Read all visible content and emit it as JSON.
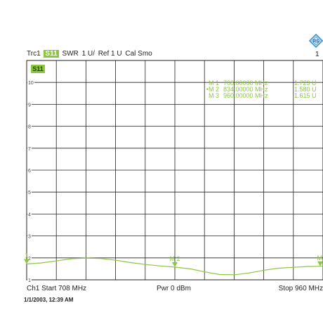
{
  "trace": {
    "name": "Trc1",
    "param": "S11",
    "format": "SWR",
    "scale": "1 U/",
    "ref": "Ref 1 U",
    "cal": "Cal Smo"
  },
  "channel_number": "1",
  "footer": {
    "start": "Ch1   Start  708 MHz",
    "pwr": "Pwr  0 dBm",
    "stop": "Stop  960 MHz"
  },
  "datetime": "1/1/2003, 12:39 AM",
  "colors": {
    "trace": "#8cc63f",
    "grid": "#222222"
  },
  "icons": {
    "logo": "rohde-schwarz-logo-icon"
  },
  "chart_data": {
    "type": "line",
    "badge": "S11",
    "xlim": [
      708,
      960
    ],
    "ylim": [
      1,
      11
    ],
    "y_ticks": [
      {
        "value": 10,
        "label": "10"
      },
      {
        "value": 9,
        "label": "9"
      },
      {
        "value": 8,
        "label": "8"
      },
      {
        "value": 7,
        "label": "7"
      },
      {
        "value": 6,
        "label": "6"
      },
      {
        "value": 5,
        "label": "5"
      },
      {
        "value": 4,
        "label": "4"
      },
      {
        "value": 3,
        "label": "3"
      },
      {
        "value": 2,
        "label": "2"
      },
      {
        "value": 1,
        "label": "1"
      }
    ],
    "series": [
      {
        "x": [
          708,
          720,
          733,
          746,
          758,
          771,
          784,
          796,
          809,
          822,
          834,
          847,
          860,
          872,
          885,
          897,
          910,
          922,
          935,
          947,
          960
        ],
        "y": [
          1.72,
          1.77,
          1.86,
          1.96,
          1.99,
          1.97,
          1.89,
          1.79,
          1.7,
          1.63,
          1.58,
          1.5,
          1.36,
          1.24,
          1.23,
          1.31,
          1.44,
          1.53,
          1.57,
          1.61,
          1.62
        ]
      }
    ],
    "markers": [
      {
        "name": "M 1",
        "plot_label": "1",
        "freq": "708.00000 MHz",
        "value": "1.723  U",
        "x": 708,
        "y": 1.723,
        "active": false
      },
      {
        "name": "M 2",
        "plot_label": "M 2",
        "freq": "834.00000 MHz",
        "value": "1.580  U",
        "x": 834,
        "y": 1.58,
        "active": true
      },
      {
        "name": "M 3",
        "plot_label": "M",
        "freq": "960.00000 MHz",
        "value": "1.615  U",
        "x": 960,
        "y": 1.615,
        "active": false
      }
    ]
  }
}
